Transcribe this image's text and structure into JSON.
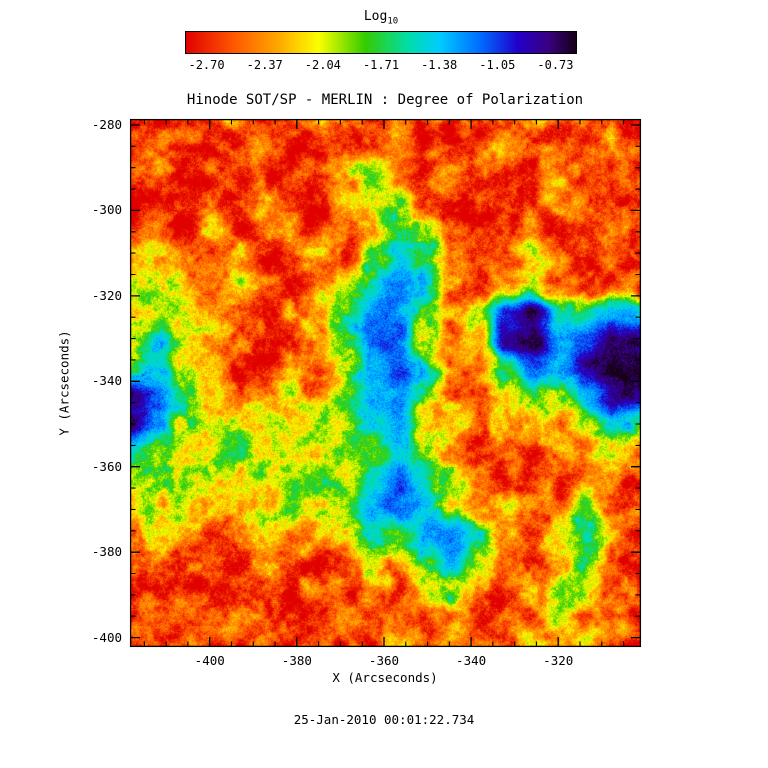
{
  "colorbar": {
    "label_main": "Log",
    "label_sub": "10",
    "tick_labels": [
      "-2.70",
      "-2.37",
      "-2.04",
      "-1.71",
      "-1.38",
      "-1.05",
      "-0.73"
    ]
  },
  "footer": {
    "timestamp": "25-Jan-2010 00:01:22.734"
  },
  "chart_data": {
    "type": "heatmap",
    "title": "Hinode SOT/SP - MERLIN : Degree of Polarization",
    "xlabel": "X (Arcseconds)",
    "ylabel": "Y (Arcseconds)",
    "colorbar_label": "Log10",
    "value_range": [
      -2.7,
      -0.73
    ],
    "colorbar_ticks": [
      -2.7,
      -2.37,
      -2.04,
      -1.71,
      -1.38,
      -1.05,
      -0.73
    ],
    "x_ticks": [
      -400,
      -380,
      -360,
      -340,
      -320
    ],
    "x_tick_labels": [
      "-400",
      "-380",
      "-360",
      "-340",
      "-320"
    ],
    "y_ticks": [
      -280,
      -300,
      -320,
      -340,
      -360,
      -380,
      -400
    ],
    "y_tick_labels": [
      "-280",
      "-300",
      "-320",
      "-340",
      "-360",
      "-380",
      "-400"
    ],
    "x_range": [
      -418.3,
      -301.0
    ],
    "y_range": [
      -278.6,
      -402.2
    ],
    "grid_on": false,
    "legend": "colorbar-top",
    "colormap": [
      {
        "t": 0.0,
        "color": "#e00000"
      },
      {
        "t": 0.12,
        "color": "#ff5500"
      },
      {
        "t": 0.24,
        "color": "#ffaa00"
      },
      {
        "t": 0.34,
        "color": "#fbff00"
      },
      {
        "t": 0.46,
        "color": "#33cc00"
      },
      {
        "t": 0.57,
        "color": "#00ddaa"
      },
      {
        "t": 0.65,
        "color": "#00ccff"
      },
      {
        "t": 0.76,
        "color": "#0066ff"
      },
      {
        "t": 0.85,
        "color": "#2200cc"
      },
      {
        "t": 0.93,
        "color": "#3a0080"
      },
      {
        "t": 1.0,
        "color": "#150015"
      }
    ],
    "grid_rows": 20,
    "grid_cols": 20,
    "grid_note": "Estimated log10 polarization values sampled on a 20x20 grid spanning x_range (left to right) and y_range (top to bottom).",
    "grid": [
      [
        -2.55,
        -2.6,
        -2.5,
        -2.6,
        -2.3,
        -2.6,
        -2.55,
        -2.4,
        -2.6,
        -2.5,
        -2.2,
        -2.6,
        -2.55,
        -2.6,
        -2.45,
        -2.2,
        -2.6,
        -2.55,
        -2.6,
        -2.6
      ],
      [
        -2.6,
        -2.5,
        -2.6,
        -2.55,
        -2.6,
        -2.3,
        -2.6,
        -2.6,
        -2.45,
        -2.6,
        -2.3,
        -2.6,
        -2.6,
        -2.4,
        -2.0,
        -2.5,
        -2.4,
        -2.6,
        -2.3,
        -2.55
      ],
      [
        -2.5,
        -2.3,
        -2.6,
        -2.6,
        -2.55,
        -2.6,
        -2.45,
        -2.6,
        -2.2,
        -1.9,
        -2.4,
        -2.6,
        -2.2,
        -2.5,
        -2.6,
        -2.55,
        -2.3,
        -2.6,
        -2.5,
        -2.6
      ],
      [
        -2.6,
        -2.55,
        -2.4,
        -2.6,
        -2.6,
        -2.1,
        -2.55,
        -2.6,
        -2.4,
        -2.0,
        -1.8,
        -2.5,
        -2.6,
        -2.6,
        -2.4,
        -2.6,
        -2.2,
        -2.55,
        -2.6,
        -2.5
      ],
      [
        -2.55,
        -2.4,
        -2.6,
        -2.2,
        -2.6,
        -2.55,
        -2.3,
        -2.6,
        -2.5,
        -2.2,
        -1.55,
        -1.8,
        -2.5,
        -2.6,
        -2.55,
        -2.4,
        -2.6,
        -2.6,
        -2.5,
        -2.6
      ],
      [
        -2.3,
        -2.15,
        -2.3,
        -2.5,
        -2.2,
        -2.6,
        -2.5,
        -2.2,
        -2.6,
        -1.9,
        -1.5,
        -1.7,
        -2.4,
        -2.6,
        -2.5,
        -2.1,
        -2.45,
        -2.6,
        -2.55,
        -2.6
      ],
      [
        -2.1,
        -1.95,
        -2.15,
        -2.35,
        -2.05,
        -2.45,
        -2.6,
        -2.3,
        -2.0,
        -1.5,
        -1.2,
        -1.6,
        -2.3,
        -2.55,
        -2.4,
        -1.9,
        -2.5,
        -2.6,
        -2.6,
        -2.55
      ],
      [
        -2.0,
        -1.85,
        -2.05,
        -2.3,
        -2.45,
        -2.55,
        -2.4,
        -2.1,
        -1.7,
        -1.25,
        -1.3,
        -1.8,
        -2.35,
        -1.9,
        -1.05,
        -0.85,
        -1.5,
        -1.55,
        -1.3,
        -1.45
      ],
      [
        -1.9,
        -1.6,
        -1.85,
        -2.2,
        -2.4,
        -2.6,
        -2.5,
        -2.25,
        -1.85,
        -1.3,
        -1.2,
        -2.0,
        -2.5,
        -2.15,
        -0.95,
        -0.8,
        -1.35,
        -1.1,
        -0.85,
        -0.82
      ],
      [
        -1.75,
        -1.55,
        -1.9,
        -2.25,
        -2.55,
        -2.5,
        -2.35,
        -2.5,
        -2.0,
        -1.4,
        -1.15,
        -1.6,
        -2.25,
        -2.5,
        -1.6,
        -1.25,
        -1.45,
        -0.9,
        -0.74,
        -0.73
      ],
      [
        -0.85,
        -1.15,
        -1.7,
        -2.05,
        -2.3,
        -2.2,
        -2.05,
        -2.3,
        -1.85,
        -1.35,
        -1.25,
        -1.85,
        -2.4,
        -2.55,
        -2.05,
        -1.75,
        -2.05,
        -1.3,
        -0.92,
        -0.88
      ],
      [
        -0.9,
        -1.35,
        -1.85,
        -2.1,
        -2.0,
        -1.95,
        -2.1,
        -2.0,
        -1.9,
        -1.55,
        -1.35,
        -2.0,
        -2.2,
        -2.4,
        -2.25,
        -2.05,
        -2.4,
        -1.85,
        -1.5,
        -1.65
      ],
      [
        -1.5,
        -1.75,
        -2.0,
        -1.9,
        -1.85,
        -2.0,
        -1.9,
        -2.05,
        -2.0,
        -1.7,
        -1.5,
        -1.9,
        -2.3,
        -2.55,
        -2.45,
        -2.55,
        -2.25,
        -2.4,
        -2.05,
        -2.25
      ],
      [
        -1.85,
        -2.0,
        -1.9,
        -2.1,
        -2.0,
        -1.9,
        -2.0,
        -1.85,
        -1.9,
        -1.45,
        -1.2,
        -1.55,
        -2.05,
        -2.4,
        -2.6,
        -2.35,
        -2.6,
        -2.2,
        -2.45,
        -2.6
      ],
      [
        -2.2,
        -1.95,
        -2.1,
        -2.0,
        -2.2,
        -2.1,
        -1.9,
        -2.0,
        -1.75,
        -1.35,
        -1.2,
        -1.45,
        -1.9,
        -2.3,
        -2.05,
        -2.55,
        -2.35,
        -1.85,
        -2.55,
        -2.4
      ],
      [
        -2.45,
        -2.2,
        -2.4,
        -2.55,
        -2.3,
        -2.05,
        -2.2,
        -2.4,
        -2.05,
        -1.55,
        -1.8,
        -1.35,
        -1.2,
        -1.55,
        -2.2,
        -2.45,
        -2.05,
        -1.5,
        -2.25,
        -2.55
      ],
      [
        -2.6,
        -2.4,
        -2.55,
        -2.35,
        -2.6,
        -2.25,
        -2.55,
        -2.6,
        -2.35,
        -1.95,
        -2.25,
        -1.65,
        -1.35,
        -1.75,
        -2.4,
        -2.6,
        -2.25,
        -1.85,
        -2.45,
        -2.6
      ],
      [
        -2.6,
        -2.55,
        -2.45,
        -2.6,
        -2.55,
        -2.45,
        -2.6,
        -2.35,
        -2.6,
        -2.25,
        -2.55,
        -2.05,
        -1.75,
        -2.25,
        -2.6,
        -2.35,
        -1.9,
        -2.15,
        -2.55,
        -2.45
      ],
      [
        -2.55,
        -2.35,
        -2.6,
        -2.5,
        -2.25,
        -2.6,
        -2.55,
        -2.6,
        -2.15,
        -2.55,
        -2.35,
        -2.6,
        -2.25,
        -2.6,
        -2.45,
        -2.55,
        -1.7,
        -2.4,
        -2.2,
        -2.6
      ],
      [
        -2.6,
        -2.55,
        -2.5,
        -2.6,
        -2.55,
        -2.35,
        -2.6,
        -2.45,
        -2.6,
        -2.55,
        -2.25,
        -2.6,
        -2.55,
        -2.35,
        -2.6,
        -2.05,
        -2.4,
        -1.95,
        -2.55,
        -2.5
      ]
    ]
  }
}
